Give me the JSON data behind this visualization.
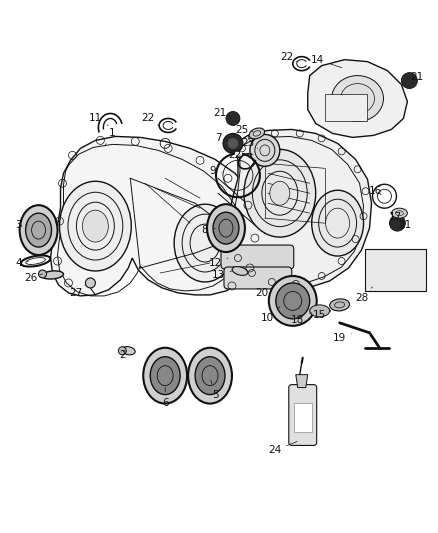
{
  "bg_color": "#ffffff",
  "line_color": "#111111",
  "label_color": "#111111",
  "figsize": [
    4.38,
    5.33
  ],
  "dpi": 100
}
